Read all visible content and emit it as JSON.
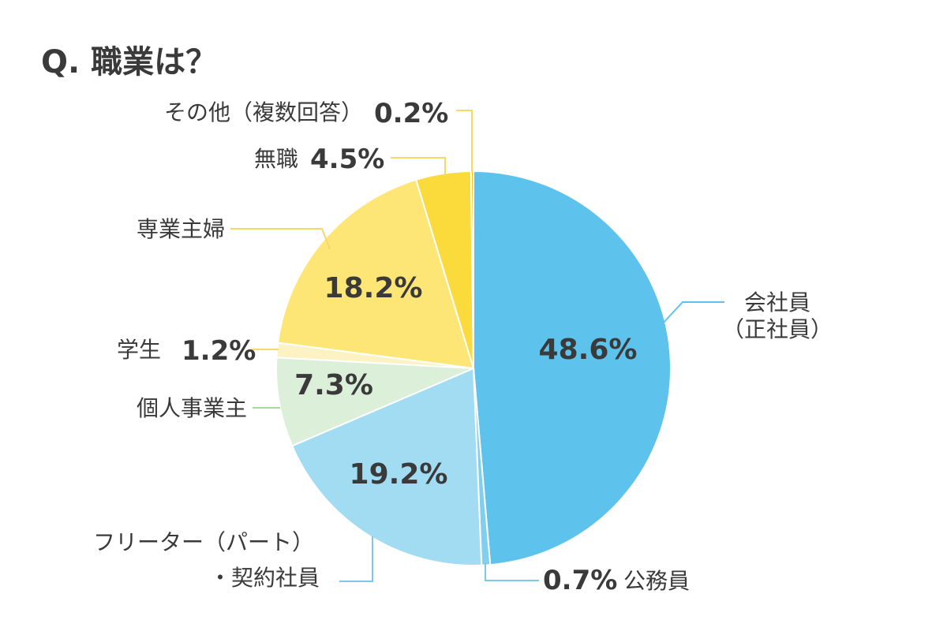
{
  "chart_data": {
    "type": "pie",
    "title": "Q. 職業は？",
    "slices": [
      {
        "name": "会社員（正社員）",
        "name_lines": [
          "会社員",
          "（正社員）"
        ],
        "value": 48.6,
        "label": "48.6%",
        "color": "#5ec3ec",
        "leader_color": "#5ec3ec"
      },
      {
        "name": "公務員",
        "name_lines": [
          "公務員"
        ],
        "value": 0.7,
        "label": "0.7%",
        "color": "#80cfee",
        "leader_color": "#7fc6e8"
      },
      {
        "name": "フリーター（パート）・契約社員",
        "name_lines": [
          "フリーター（パート）",
          "・契約社員"
        ],
        "value": 19.2,
        "label": "19.2%",
        "color": "#a1dcf3",
        "leader_color": "#7fc6e8"
      },
      {
        "name": "個人事業主",
        "name_lines": [
          "個人事業主"
        ],
        "value": 7.3,
        "label": "7.3%",
        "color": "#dcefd8",
        "leader_color": "#a8d8a0"
      },
      {
        "name": "学生",
        "name_lines": [
          "学生"
        ],
        "value": 1.2,
        "label": "1.2%",
        "color": "#fdf2c4",
        "leader_color": "#f6d86a"
      },
      {
        "name": "専業主婦",
        "name_lines": [
          "専業主婦"
        ],
        "value": 18.2,
        "label": "18.2%",
        "color": "#fde675",
        "leader_color": "#f6d86a"
      },
      {
        "name": "無職",
        "name_lines": [
          "無職"
        ],
        "value": 4.5,
        "label": "4.5%",
        "color": "#fbdb3c",
        "leader_color": "#f6d86a"
      },
      {
        "name": "その他（複数回答）",
        "name_lines": [
          "その他（複数回答）"
        ],
        "value": 0.2,
        "label": "0.2%",
        "color": "#f6c400",
        "leader_color": "#f6d86a"
      }
    ]
  }
}
